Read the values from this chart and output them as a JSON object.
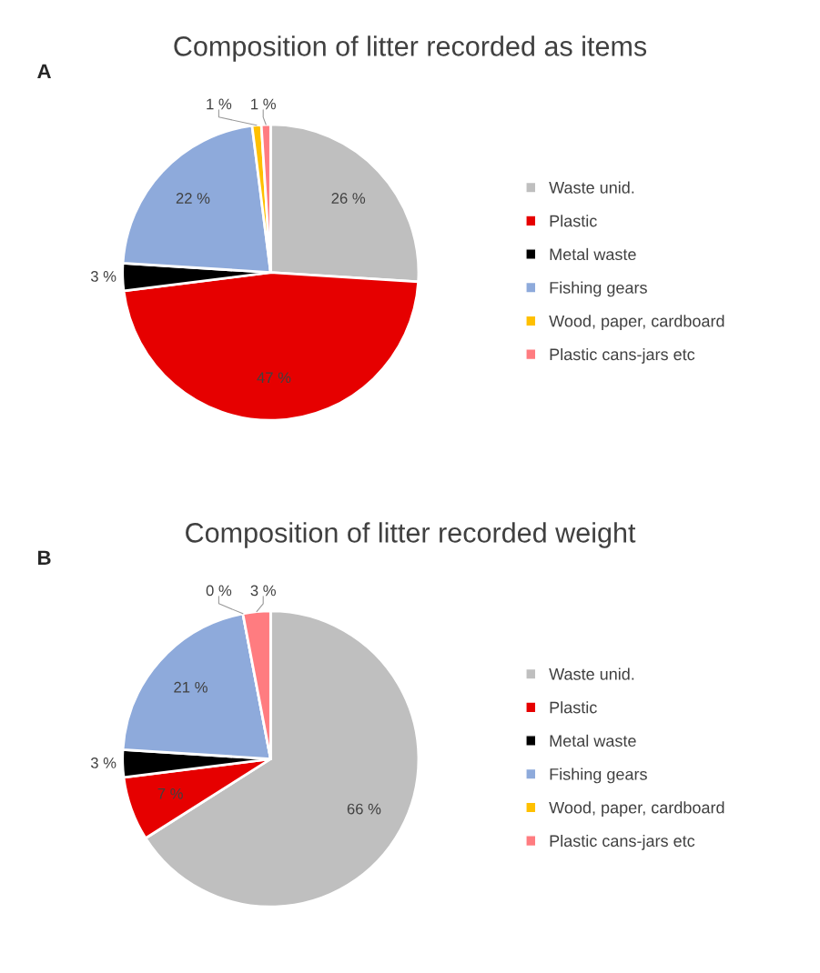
{
  "chart_data": [
    {
      "type": "pie",
      "title": "Composition of litter recorded as items",
      "annotations": [
        "A"
      ],
      "categories": [
        "Waste unid.",
        "Plastic",
        "Metal waste",
        "Fishing gears",
        "Wood, paper, cardboard",
        "Plastic cans-jars etc"
      ],
      "values": [
        26,
        47,
        3,
        22,
        1,
        1
      ],
      "value_labels": [
        "26 %",
        "47 %",
        "3 %",
        "22 %",
        "1 %",
        "1 %"
      ],
      "colors": [
        "#bfbfbf",
        "#e60000",
        "#000000",
        "#8eaadb",
        "#ffc000",
        "#ff7c80"
      ],
      "legend": "right"
    },
    {
      "type": "pie",
      "title": "Composition of litter recorded weight",
      "annotations": [
        "B"
      ],
      "categories": [
        "Waste unid.",
        "Plastic",
        "Metal waste",
        "Fishing gears",
        "Wood, paper, cardboard",
        "Plastic cans-jars etc"
      ],
      "values": [
        66,
        7,
        3,
        21,
        0,
        3
      ],
      "value_labels": [
        "66 %",
        "7 %",
        "3 %",
        "21 %",
        "0 %",
        "3 %"
      ],
      "colors": [
        "#bfbfbf",
        "#e60000",
        "#000000",
        "#8eaadb",
        "#ffc000",
        "#ff7c80"
      ],
      "legend": "right"
    }
  ]
}
